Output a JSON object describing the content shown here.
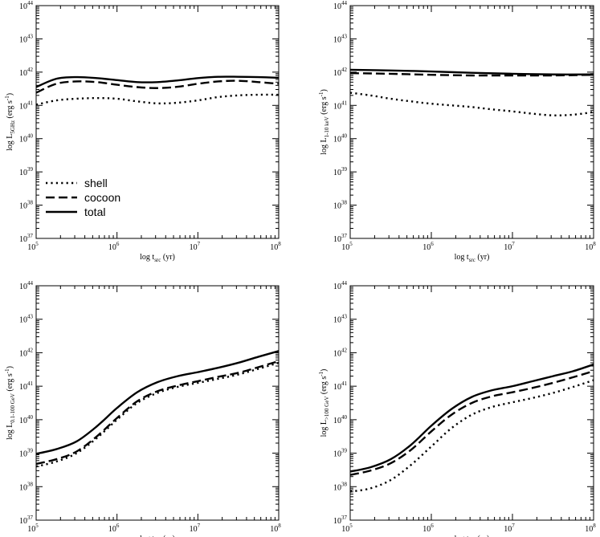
{
  "chart_data": [
    {
      "type": "line",
      "xlabel_main": "log t",
      "xlabel_sub": "src",
      "xlabel_tail": " (yr)",
      "ylabel_main": "log L",
      "ylabel_sub": "5GHz",
      "ylabel_tail": " (erg s",
      "ylabel_exp": "-1",
      "ylabel_close": ")",
      "xlim": [
        5,
        8
      ],
      "ylim": [
        37,
        44
      ],
      "xticks": [
        {
          "base": "10",
          "exp": "5"
        },
        {
          "base": "10",
          "exp": "6"
        },
        {
          "base": "10",
          "exp": "7"
        },
        {
          "base": "10",
          "exp": "8"
        }
      ],
      "yticks": [
        {
          "base": "10",
          "exp": "37"
        },
        {
          "base": "10",
          "exp": "38"
        },
        {
          "base": "10",
          "exp": "39"
        },
        {
          "base": "10",
          "exp": "40"
        },
        {
          "base": "10",
          "exp": "41"
        },
        {
          "base": "10",
          "exp": "42"
        },
        {
          "base": "10",
          "exp": "43"
        },
        {
          "base": "10",
          "exp": "44"
        }
      ],
      "legend": {
        "position": "lower-left",
        "entries": [
          "shell",
          "cocoon",
          "total"
        ]
      },
      "series": [
        {
          "name": "shell",
          "style": "dotted",
          "x": [
            5,
            5.25,
            5.5,
            5.75,
            6,
            6.25,
            6.5,
            6.75,
            7,
            7.25,
            7.5,
            7.75,
            8
          ],
          "y": [
            41.02,
            41.15,
            41.2,
            41.22,
            41.2,
            41.12,
            41.06,
            41.08,
            41.15,
            41.25,
            41.3,
            41.32,
            41.32
          ]
        },
        {
          "name": "cocoon",
          "style": "dashed",
          "x": [
            5,
            5.25,
            5.5,
            5.75,
            6,
            6.25,
            6.5,
            6.75,
            7,
            7.25,
            7.5,
            7.75,
            8
          ],
          "y": [
            41.38,
            41.65,
            41.72,
            41.7,
            41.62,
            41.55,
            41.52,
            41.56,
            41.65,
            41.72,
            41.74,
            41.7,
            41.65
          ]
        },
        {
          "name": "total",
          "style": "solid",
          "x": [
            5,
            5.25,
            5.5,
            5.75,
            6,
            6.25,
            6.5,
            6.75,
            7,
            7.25,
            7.5,
            7.75,
            8
          ],
          "y": [
            41.55,
            41.8,
            41.85,
            41.82,
            41.76,
            41.7,
            41.7,
            41.75,
            41.82,
            41.86,
            41.86,
            41.85,
            41.83
          ]
        }
      ]
    },
    {
      "type": "line",
      "xlabel_main": "log t",
      "xlabel_sub": "src",
      "xlabel_tail": " (yr)",
      "ylabel_main": "log L",
      "ylabel_sub": "1-10 keV",
      "ylabel_tail": " (erg s",
      "ylabel_exp": "-1",
      "ylabel_close": ")",
      "xlim": [
        5,
        8
      ],
      "ylim": [
        37,
        44
      ],
      "xticks": [
        {
          "base": "10",
          "exp": "5"
        },
        {
          "base": "10",
          "exp": "6"
        },
        {
          "base": "10",
          "exp": "7"
        },
        {
          "base": "10",
          "exp": "8"
        }
      ],
      "yticks": [
        {
          "base": "10",
          "exp": "37"
        },
        {
          "base": "10",
          "exp": "38"
        },
        {
          "base": "10",
          "exp": "39"
        },
        {
          "base": "10",
          "exp": "40"
        },
        {
          "base": "10",
          "exp": "41"
        },
        {
          "base": "10",
          "exp": "42"
        },
        {
          "base": "10",
          "exp": "43"
        },
        {
          "base": "10",
          "exp": "44"
        }
      ],
      "series": [
        {
          "name": "shell",
          "style": "dotted",
          "x": [
            5,
            5.25,
            5.5,
            5.75,
            6,
            6.25,
            6.5,
            6.75,
            7,
            7.25,
            7.5,
            7.75,
            8
          ],
          "y": [
            41.38,
            41.3,
            41.2,
            41.12,
            41.05,
            41.0,
            40.95,
            40.88,
            40.82,
            40.75,
            40.7,
            40.72,
            40.8
          ]
        },
        {
          "name": "cocoon",
          "style": "dashed",
          "x": [
            5,
            5.5,
            6,
            6.5,
            7,
            7.5,
            8
          ],
          "y": [
            41.97,
            41.95,
            41.92,
            41.9,
            41.9,
            41.9,
            41.92
          ]
        },
        {
          "name": "total",
          "style": "solid",
          "x": [
            5,
            5.5,
            6,
            6.5,
            7,
            7.5,
            8
          ],
          "y": [
            42.07,
            42.05,
            42.02,
            41.98,
            41.95,
            41.93,
            41.93
          ]
        }
      ]
    },
    {
      "type": "line",
      "xlabel_main": "log t",
      "xlabel_sub": "src",
      "xlabel_tail": " (yr)",
      "ylabel_main": "log L",
      "ylabel_sub": "0.1-100 GeV",
      "ylabel_tail": " (erg s",
      "ylabel_exp": "-1",
      "ylabel_close": ")",
      "xlim": [
        5,
        8
      ],
      "ylim": [
        37,
        44
      ],
      "xticks": [
        {
          "base": "10",
          "exp": "5"
        },
        {
          "base": "10",
          "exp": "6"
        },
        {
          "base": "10",
          "exp": "7"
        },
        {
          "base": "10",
          "exp": "8"
        }
      ],
      "yticks": [
        {
          "base": "10",
          "exp": "37"
        },
        {
          "base": "10",
          "exp": "38"
        },
        {
          "base": "10",
          "exp": "39"
        },
        {
          "base": "10",
          "exp": "40"
        },
        {
          "base": "10",
          "exp": "41"
        },
        {
          "base": "10",
          "exp": "42"
        },
        {
          "base": "10",
          "exp": "43"
        },
        {
          "base": "10",
          "exp": "44"
        }
      ],
      "series": [
        {
          "name": "shell",
          "style": "dotted",
          "x": [
            5,
            5.25,
            5.5,
            5.75,
            6,
            6.25,
            6.5,
            6.75,
            7,
            7.25,
            7.5,
            7.75,
            8
          ],
          "y": [
            38.6,
            38.75,
            39.0,
            39.45,
            40.0,
            40.5,
            40.8,
            40.98,
            41.1,
            41.22,
            41.35,
            41.52,
            41.7
          ]
        },
        {
          "name": "cocoon",
          "style": "dashed",
          "x": [
            5,
            5.25,
            5.5,
            5.75,
            6,
            6.25,
            6.5,
            6.75,
            7,
            7.25,
            7.5,
            7.75,
            8
          ],
          "y": [
            38.68,
            38.82,
            39.05,
            39.5,
            40.05,
            40.55,
            40.85,
            41.02,
            41.15,
            41.28,
            41.4,
            41.57,
            41.75
          ]
        },
        {
          "name": "total",
          "style": "solid",
          "x": [
            5,
            5.25,
            5.5,
            5.75,
            6,
            6.25,
            6.5,
            6.75,
            7,
            7.25,
            7.5,
            7.75,
            8
          ],
          "y": [
            38.98,
            39.12,
            39.35,
            39.8,
            40.35,
            40.82,
            41.12,
            41.3,
            41.42,
            41.55,
            41.7,
            41.88,
            42.05
          ]
        }
      ]
    },
    {
      "type": "line",
      "xlabel_main": "log t",
      "xlabel_sub": "src",
      "xlabel_tail": " (yr)",
      "ylabel_main": "log L",
      "ylabel_sub": ">100 GeV",
      "ylabel_tail": " (erg s",
      "ylabel_exp": "-1",
      "ylabel_close": ")",
      "xlim": [
        5,
        8
      ],
      "ylim": [
        37,
        44
      ],
      "xticks": [
        {
          "base": "10",
          "exp": "5"
        },
        {
          "base": "10",
          "exp": "6"
        },
        {
          "base": "10",
          "exp": "7"
        },
        {
          "base": "10",
          "exp": "8"
        }
      ],
      "yticks": [
        {
          "base": "10",
          "exp": "37"
        },
        {
          "base": "10",
          "exp": "38"
        },
        {
          "base": "10",
          "exp": "39"
        },
        {
          "base": "10",
          "exp": "40"
        },
        {
          "base": "10",
          "exp": "41"
        },
        {
          "base": "10",
          "exp": "42"
        },
        {
          "base": "10",
          "exp": "43"
        },
        {
          "base": "10",
          "exp": "44"
        }
      ],
      "series": [
        {
          "name": "shell",
          "style": "dotted",
          "x": [
            5,
            5.25,
            5.5,
            5.75,
            6,
            6.25,
            6.5,
            6.75,
            7,
            7.25,
            7.5,
            7.75,
            8
          ],
          "y": [
            37.85,
            37.95,
            38.2,
            38.65,
            39.2,
            39.75,
            40.15,
            40.38,
            40.52,
            40.65,
            40.8,
            40.98,
            41.18
          ]
        },
        {
          "name": "cocoon",
          "style": "dashed",
          "x": [
            5,
            5.25,
            5.5,
            5.75,
            6,
            6.25,
            6.5,
            6.75,
            7,
            7.25,
            7.5,
            7.75,
            8
          ],
          "y": [
            38.35,
            38.48,
            38.7,
            39.1,
            39.65,
            40.15,
            40.5,
            40.7,
            40.82,
            40.95,
            41.1,
            41.27,
            41.45
          ]
        },
        {
          "name": "total",
          "style": "solid",
          "x": [
            5,
            5.25,
            5.5,
            5.75,
            6,
            6.25,
            6.5,
            6.75,
            7,
            7.25,
            7.5,
            7.75,
            8
          ],
          "y": [
            38.45,
            38.58,
            38.82,
            39.25,
            39.82,
            40.32,
            40.68,
            40.88,
            41.0,
            41.15,
            41.3,
            41.45,
            41.65
          ]
        }
      ]
    }
  ]
}
